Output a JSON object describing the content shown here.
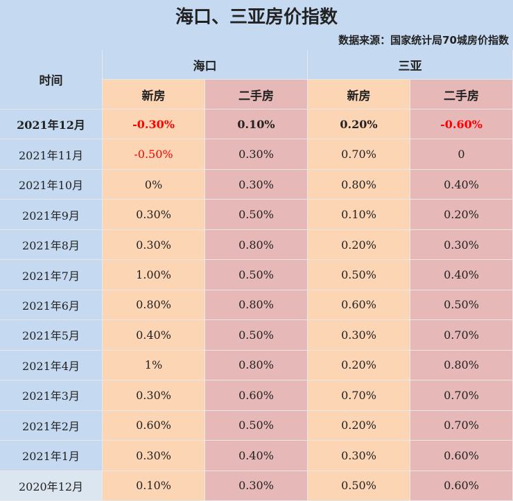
{
  "title": "海口、三亚房价指数",
  "source": "数据来源：国家统计局70城房价指数",
  "header": {
    "time": "时间",
    "groups": [
      "海口",
      "三亚"
    ],
    "sub": [
      "新房",
      "二手房",
      "新房",
      "二手房"
    ]
  },
  "rows": [
    [
      "2021年12月",
      "-0.30%",
      "0.10%",
      "0.20%",
      "-0.60%"
    ],
    [
      "2021年11月",
      "-0.50%",
      "0.30%",
      "0.70%",
      "0"
    ],
    [
      "2021年10月",
      "0%",
      "0.30%",
      "0.80%",
      "0.40%"
    ],
    [
      "2021年9月",
      "0.30%",
      "0.50%",
      "0.10%",
      "0.20%"
    ],
    [
      "2021年8月",
      "0.30%",
      "0.80%",
      "0.20%",
      "0.30%"
    ],
    [
      "2021年7月",
      "1.00%",
      "0.50%",
      "0.50%",
      "0.40%"
    ],
    [
      "2021年6月",
      "0.80%",
      "0.80%",
      "0.60%",
      "0.50%"
    ],
    [
      "2021年5月",
      "0.40%",
      "0.50%",
      "0.30%",
      "0.70%"
    ],
    [
      "2021年4月",
      "1%",
      "0.80%",
      "0.20%",
      "0.80%"
    ],
    [
      "2021年3月",
      "0.30%",
      "0.60%",
      "0.70%",
      "0.70%"
    ],
    [
      "2021年2月",
      "0.60%",
      "0.50%",
      "0.20%",
      "0.70%"
    ],
    [
      "2021年1月",
      "0.30%",
      "0.40%",
      "0.30%",
      "0.60%"
    ],
    [
      "2020年12月",
      "0.10%",
      "0.30%",
      "0.50%",
      "0.60%"
    ]
  ]
}
